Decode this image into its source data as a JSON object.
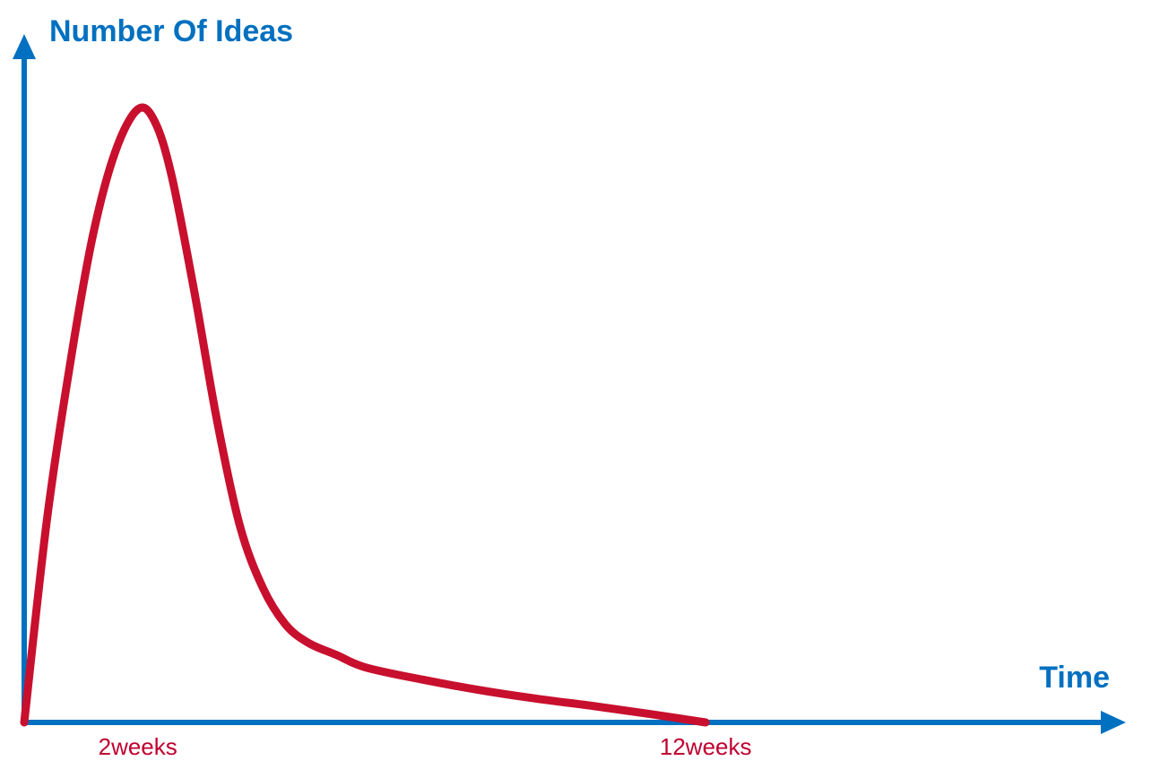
{
  "chart_data": {
    "type": "line",
    "title": "",
    "ylabel": "Number Of Ideas",
    "xlabel": "Time",
    "x_tick_labels": [
      {
        "label": "2weeks",
        "x": 2
      },
      {
        "label": "12weeks",
        "x": 12
      }
    ],
    "xlim": [
      0,
      19.4
    ],
    "ylim": [
      0,
      100
    ],
    "grid": false,
    "legend": "none",
    "series": [
      {
        "x": [
          0,
          0.4,
          0.8,
          1.2,
          1.6,
          2.0,
          2.3,
          2.6,
          3.0,
          3.4,
          3.8,
          4.2,
          4.6,
          5.0,
          5.5,
          6.0,
          7.0,
          8.0,
          9.0,
          10.0,
          11.0,
          12.0
        ],
        "y": [
          0,
          33,
          58,
          79,
          93,
          100,
          98,
          89,
          70,
          49,
          32,
          22,
          16,
          13,
          11,
          9,
          7,
          5.3,
          3.9,
          2.7,
          1.4,
          0
        ]
      }
    ],
    "colors": {
      "axis": "#0070C0",
      "curve": "#C8102E",
      "tick_text": "#C00030"
    }
  }
}
